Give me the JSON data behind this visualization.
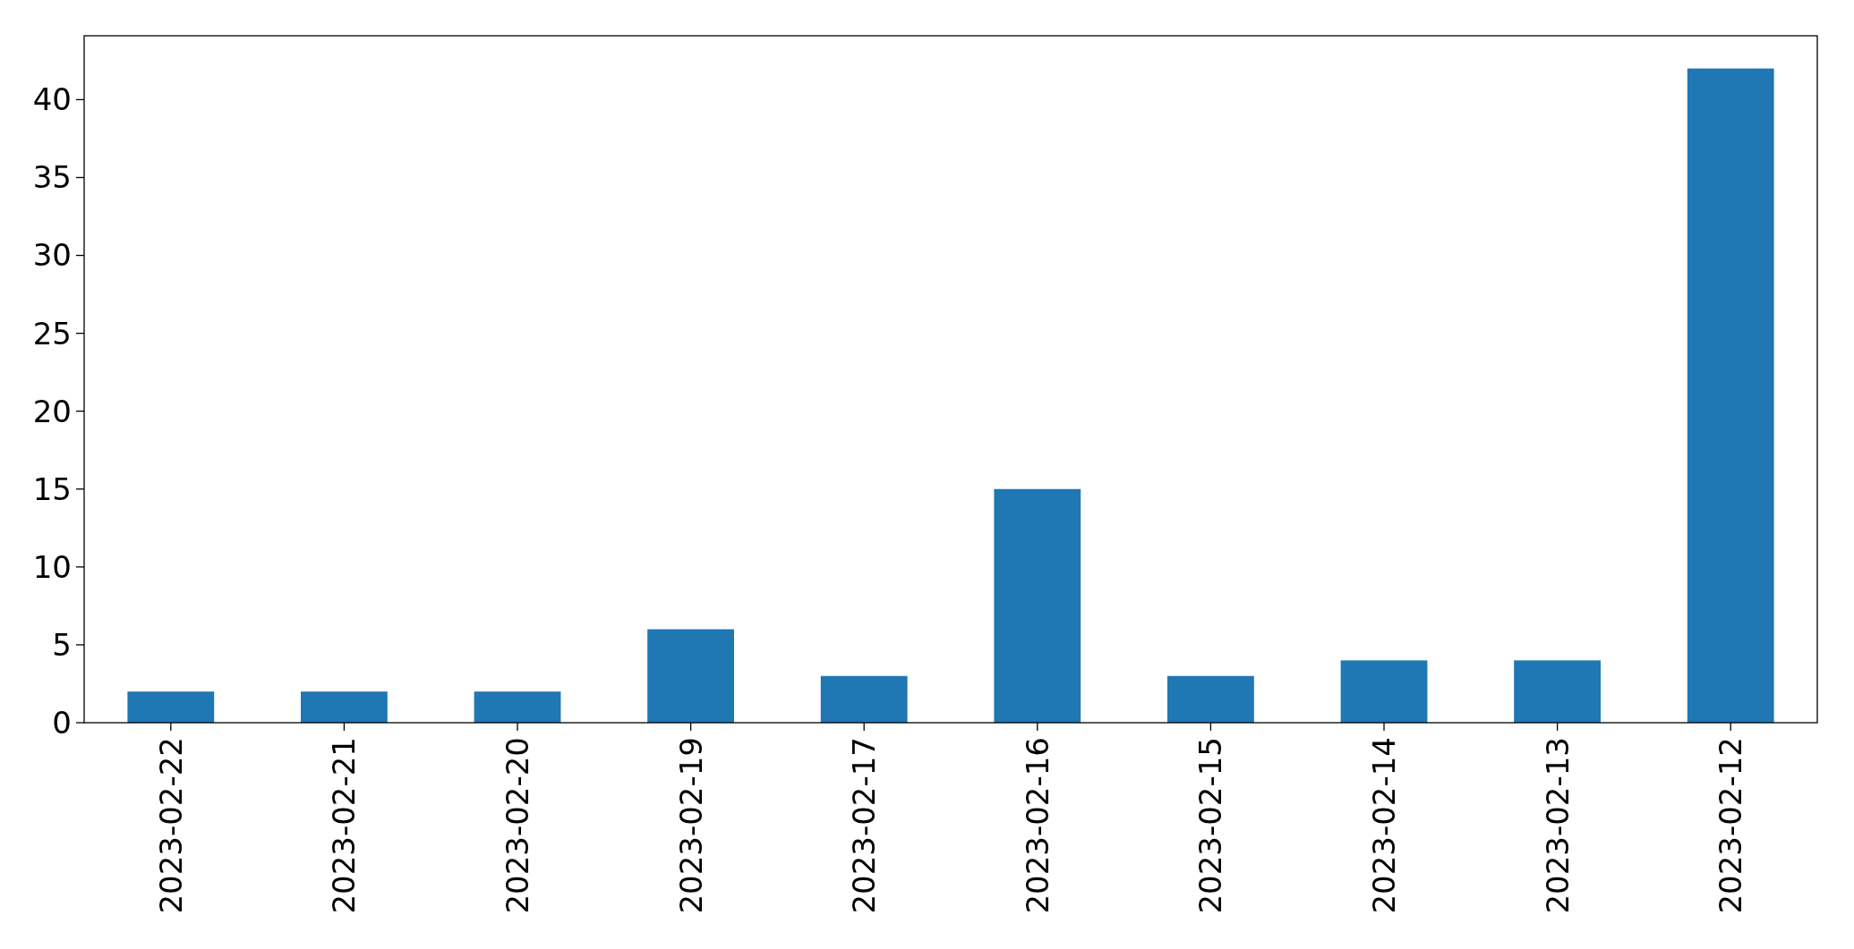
{
  "chart_data": {
    "type": "bar",
    "categories": [
      "2023-02-22",
      "2023-02-21",
      "2023-02-20",
      "2023-02-19",
      "2023-02-17",
      "2023-02-16",
      "2023-02-15",
      "2023-02-14",
      "2023-02-13",
      "2023-02-12"
    ],
    "values": [
      2,
      2,
      2,
      6,
      3,
      15,
      3,
      4,
      4,
      42
    ],
    "color": "#1f77b4",
    "ylim": [
      0,
      44.1
    ],
    "yticks": [
      0,
      5,
      10,
      15,
      20,
      25,
      30,
      35,
      40
    ],
    "grid": false
  }
}
